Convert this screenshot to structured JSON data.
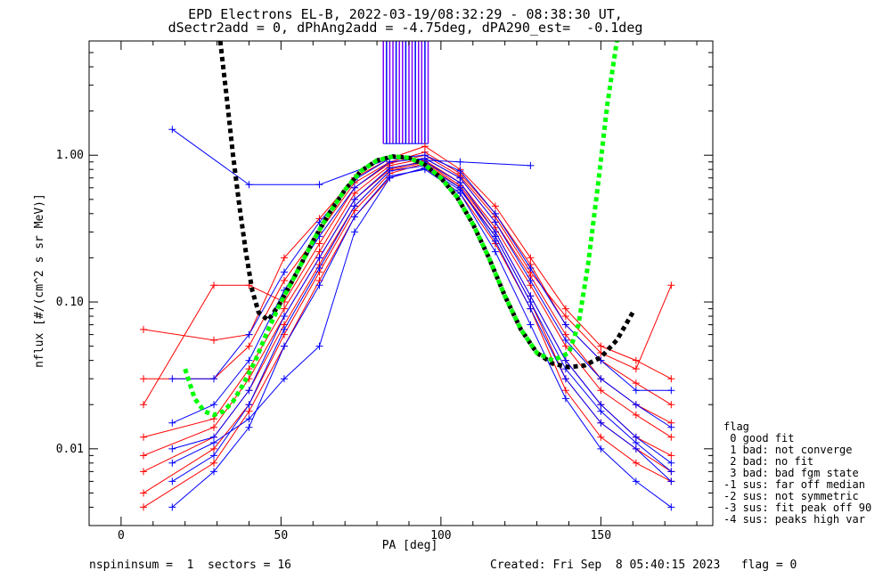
{
  "title_line1": "EPD Electrons EL-B, 2022-03-19/08:32:29 - 08:38:30 UT,",
  "title_line2": "dSectr2add = 0, dPhAng2add = -4.75deg, dPA290_est=  -0.1deg",
  "footer_left": "nspininsum =  1  sectors = 16",
  "footer_right": "Created: Fri Sep  8 05:40:15 2023   flag = 0",
  "legend": {
    "title": "flag",
    "items": [
      " 0 good fit",
      " 1 bad: not converge",
      " 2 bad: no fit",
      " 3 bad: bad fgm state",
      "-1 sus: far off median",
      "-2 sus: not symmetric",
      "-3 sus: fit peak off 90",
      "-4 sus: peaks high var"
    ]
  },
  "chart_data": {
    "type": "line",
    "xlabel": "PA [deg]",
    "ylabel": "nflux [#/(cm^2 s sr MeV)]",
    "xlim": [
      -10,
      185
    ],
    "ylim": [
      0.003,
      6.0
    ],
    "yscale": "log",
    "x_ticks": [
      0,
      50,
      100,
      150
    ],
    "x_tick_labels": [
      "0",
      "50",
      "100",
      "150"
    ],
    "y_ticks": [
      0.01,
      0.1,
      1.0
    ],
    "y_tick_labels": [
      "0.01",
      "0.10",
      "1.00"
    ],
    "colors": {
      "red": "#ff0000",
      "blue": "#0000ff",
      "green": "#00ff00",
      "black": "#000000",
      "purple": "#7f00ff"
    },
    "series": [
      {
        "color": "red",
        "pa": [
          7,
          29,
          40,
          51,
          62,
          73,
          84,
          95,
          106,
          117,
          128,
          139,
          150,
          161,
          172
        ],
        "values": [
          0.012,
          0.016,
          0.035,
          0.09,
          0.22,
          0.55,
          0.85,
          0.95,
          0.7,
          0.35,
          0.15,
          0.06,
          0.03,
          0.02,
          0.015
        ]
      },
      {
        "color": "red",
        "pa": [
          7,
          29,
          40,
          51,
          62,
          73,
          84,
          95,
          106,
          117,
          128,
          139,
          150,
          161,
          172
        ],
        "values": [
          0.03,
          0.03,
          0.05,
          0.14,
          0.3,
          0.65,
          0.9,
          1.05,
          0.75,
          0.4,
          0.18,
          0.07,
          0.04,
          0.028,
          0.02
        ]
      },
      {
        "color": "red",
        "pa": [
          7,
          29,
          40,
          51,
          62,
          73,
          84,
          95,
          106,
          117,
          128,
          139,
          150,
          161,
          172
        ],
        "values": [
          0.007,
          0.012,
          0.025,
          0.07,
          0.18,
          0.45,
          0.78,
          0.9,
          0.62,
          0.3,
          0.11,
          0.04,
          0.02,
          0.012,
          0.009
        ]
      },
      {
        "color": "red",
        "pa": [
          7,
          29,
          40,
          51,
          62,
          73,
          84,
          95,
          106,
          117,
          128,
          139,
          150,
          161,
          172
        ],
        "values": [
          0.005,
          0.01,
          0.02,
          0.06,
          0.16,
          0.42,
          0.75,
          0.88,
          0.6,
          0.28,
          0.1,
          0.03,
          0.015,
          0.01,
          0.007
        ]
      },
      {
        "color": "red",
        "pa": [
          7,
          29,
          40,
          51,
          62,
          73,
          84,
          95,
          106,
          117,
          128,
          139,
          150,
          161,
          172
        ],
        "values": [
          0.065,
          0.055,
          0.06,
          0.2,
          0.37,
          0.7,
          0.95,
          1.15,
          0.8,
          0.45,
          0.2,
          0.09,
          0.05,
          0.04,
          0.03
        ]
      },
      {
        "color": "red",
        "pa": [
          7,
          29,
          40,
          51,
          62,
          73,
          84,
          95,
          106,
          117,
          128,
          139,
          150,
          161,
          172
        ],
        "values": [
          0.004,
          0.008,
          0.018,
          0.05,
          0.14,
          0.38,
          0.7,
          0.82,
          0.55,
          0.25,
          0.09,
          0.025,
          0.012,
          0.008,
          0.006
        ]
      },
      {
        "color": "red",
        "pa": [
          7,
          29,
          40,
          51,
          62,
          73,
          84,
          95,
          106,
          117,
          128,
          139,
          150,
          161,
          172
        ],
        "values": [
          0.02,
          0.13,
          0.13,
          0.1,
          0.25,
          0.6,
          0.88,
          1.0,
          0.72,
          0.38,
          0.16,
          0.08,
          0.045,
          0.035,
          0.13
        ]
      },
      {
        "color": "red",
        "pa": [
          7,
          29,
          40,
          51,
          62,
          73,
          84,
          95,
          106,
          117,
          128,
          139,
          150,
          161,
          172
        ],
        "values": [
          0.009,
          0.014,
          0.03,
          0.08,
          0.2,
          0.5,
          0.8,
          0.92,
          0.65,
          0.32,
          0.13,
          0.05,
          0.025,
          0.017,
          0.012
        ]
      },
      {
        "color": "blue",
        "pa": [
          16,
          40,
          62,
          84,
          106,
          128,
          150,
          172
        ],
        "values": [
          1.5,
          0.63,
          0.63,
          0.95,
          0.9,
          0.85,
          0.0,
          0.0
        ]
      },
      {
        "color": "blue",
        "pa": [
          16,
          29,
          40,
          51,
          62,
          73,
          84,
          95,
          106,
          117,
          128,
          139,
          150,
          161,
          172
        ],
        "values": [
          0.01,
          0.012,
          0.025,
          0.08,
          0.2,
          0.5,
          0.82,
          0.9,
          0.65,
          0.3,
          0.11,
          0.04,
          0.02,
          0.012,
          0.008
        ]
      },
      {
        "color": "blue",
        "pa": [
          16,
          29,
          40,
          51,
          62,
          73,
          84,
          95,
          106,
          117,
          128,
          139,
          150,
          161,
          172
        ],
        "values": [
          0.006,
          0.009,
          0.02,
          0.065,
          0.17,
          0.45,
          0.78,
          0.85,
          0.6,
          0.26,
          0.09,
          0.03,
          0.015,
          0.01,
          0.006
        ]
      },
      {
        "color": "blue",
        "pa": [
          16,
          29,
          40,
          51,
          62,
          73,
          84,
          95,
          106,
          117,
          128,
          139,
          150,
          161,
          172
        ],
        "values": [
          0.015,
          0.02,
          0.04,
          0.12,
          0.28,
          0.6,
          0.9,
          0.95,
          0.7,
          0.35,
          0.14,
          0.055,
          0.03,
          0.02,
          0.014
        ]
      },
      {
        "color": "blue",
        "pa": [
          16,
          29,
          40,
          51,
          62,
          73,
          84,
          95,
          106,
          117,
          128,
          139,
          150,
          161,
          172
        ],
        "values": [
          0.004,
          0.007,
          0.014,
          0.05,
          0.13,
          0.38,
          0.72,
          0.8,
          0.55,
          0.22,
          0.07,
          0.022,
          0.01,
          0.006,
          0.004
        ]
      },
      {
        "color": "blue",
        "pa": [
          16,
          29,
          40,
          51,
          62,
          73,
          84,
          95,
          106,
          117,
          128,
          139,
          150,
          161,
          172
        ],
        "values": [
          0.03,
          0.03,
          0.06,
          0.16,
          0.35,
          0.68,
          0.95,
          1.0,
          0.78,
          0.4,
          0.17,
          0.07,
          0.04,
          0.025,
          0.025
        ]
      },
      {
        "color": "blue",
        "pa": [
          16,
          29,
          40,
          51,
          62,
          73,
          84,
          95,
          106,
          117,
          128,
          139,
          150,
          161,
          172
        ],
        "values": [
          0.008,
          0.011,
          0.016,
          0.03,
          0.05,
          0.3,
          0.7,
          0.82,
          0.58,
          0.28,
          0.1,
          0.035,
          0.018,
          0.011,
          0.007
        ]
      }
    ],
    "fit_curves": [
      {
        "color": "black",
        "pa": [
          31,
          33,
          35,
          37,
          39,
          41,
          43,
          46,
          50,
          55,
          60,
          65,
          70,
          75,
          80,
          85,
          90,
          95,
          100,
          105,
          110,
          115,
          120,
          125,
          130,
          135,
          140,
          145,
          150,
          155,
          160
        ],
        "values": [
          6.0,
          2.5,
          1.0,
          0.45,
          0.22,
          0.12,
          0.085,
          0.075,
          0.1,
          0.16,
          0.26,
          0.4,
          0.58,
          0.78,
          0.92,
          0.98,
          0.96,
          0.86,
          0.7,
          0.52,
          0.34,
          0.2,
          0.11,
          0.065,
          0.045,
          0.038,
          0.036,
          0.037,
          0.042,
          0.055,
          0.085
        ]
      },
      {
        "color": "green",
        "pa": [
          20,
          23,
          26,
          29,
          32,
          35,
          38,
          42,
          46,
          50,
          55,
          60,
          65,
          70,
          75,
          80,
          85,
          90,
          95,
          100,
          105,
          110,
          115,
          120,
          125,
          130,
          135,
          140,
          143,
          146,
          149,
          152,
          155
        ],
        "values": [
          0.035,
          0.022,
          0.018,
          0.017,
          0.018,
          0.021,
          0.027,
          0.04,
          0.065,
          0.1,
          0.16,
          0.26,
          0.4,
          0.58,
          0.78,
          0.92,
          0.98,
          0.96,
          0.86,
          0.7,
          0.52,
          0.34,
          0.2,
          0.11,
          0.065,
          0.045,
          0.04,
          0.045,
          0.07,
          0.18,
          0.6,
          2.2,
          6.0
        ]
      }
    ],
    "vertical_markers": {
      "color": "purple",
      "pa": [
        82,
        83,
        84,
        85,
        86,
        87,
        88,
        89,
        90,
        91,
        92,
        93,
        94,
        95,
        96
      ],
      "from": 1.2,
      "to": 6.0
    }
  }
}
